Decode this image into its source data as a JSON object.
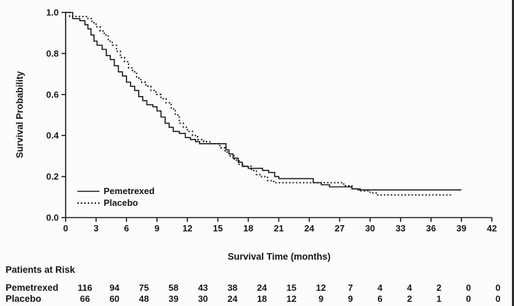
{
  "figure": {
    "background": "#fcfcfb",
    "ink": "#1a1a1a"
  },
  "chart_data": {
    "type": "line",
    "subtype": "kaplan-meier-step",
    "title": "",
    "xlabel": "Survival Time (months)",
    "ylabel": "Survival Probability",
    "xlim": [
      0,
      42
    ],
    "ylim": [
      0,
      1
    ],
    "x_ticks": [
      0,
      3,
      6,
      9,
      12,
      15,
      18,
      21,
      24,
      27,
      30,
      33,
      36,
      39,
      42
    ],
    "y_ticks": [
      "0.0",
      "0.2",
      "0.4",
      "0.6",
      "0.8",
      "1.0"
    ],
    "grid": false,
    "legend_position": "inside-lower-left",
    "series": [
      {
        "name": "Pemetrexed",
        "line_style": "solid",
        "color": "#1a1a1a",
        "points": [
          [
            0,
            1.0
          ],
          [
            0.7,
            0.97
          ],
          [
            1.4,
            0.96
          ],
          [
            1.9,
            0.94
          ],
          [
            2.2,
            0.92
          ],
          [
            2.5,
            0.89
          ],
          [
            2.8,
            0.86
          ],
          [
            3.1,
            0.84
          ],
          [
            3.6,
            0.82
          ],
          [
            4.0,
            0.79
          ],
          [
            4.4,
            0.77
          ],
          [
            4.8,
            0.74
          ],
          [
            5.2,
            0.71
          ],
          [
            5.6,
            0.69
          ],
          [
            6.0,
            0.66
          ],
          [
            6.4,
            0.64
          ],
          [
            6.8,
            0.62
          ],
          [
            7.2,
            0.59
          ],
          [
            7.6,
            0.57
          ],
          [
            8.0,
            0.55
          ],
          [
            8.6,
            0.54
          ],
          [
            9.0,
            0.52
          ],
          [
            9.4,
            0.49
          ],
          [
            9.8,
            0.46
          ],
          [
            10.2,
            0.44
          ],
          [
            10.6,
            0.42
          ],
          [
            11.2,
            0.41
          ],
          [
            11.8,
            0.39
          ],
          [
            12.3,
            0.38
          ],
          [
            12.8,
            0.37
          ],
          [
            13.2,
            0.36
          ],
          [
            15.8,
            0.33
          ],
          [
            16.1,
            0.31
          ],
          [
            16.5,
            0.29
          ],
          [
            17.0,
            0.27
          ],
          [
            17.4,
            0.25
          ],
          [
            18.0,
            0.24
          ],
          [
            19.4,
            0.23
          ],
          [
            20.0,
            0.22
          ],
          [
            20.6,
            0.2
          ],
          [
            21.0,
            0.19
          ],
          [
            24.4,
            0.17
          ],
          [
            25.2,
            0.16
          ],
          [
            26.0,
            0.15
          ],
          [
            28.2,
            0.14
          ],
          [
            28.8,
            0.135
          ],
          [
            39,
            0.135
          ]
        ]
      },
      {
        "name": "Placebo",
        "line_style": "dotted",
        "color": "#1a1a1a",
        "points": [
          [
            0,
            1.0
          ],
          [
            0.4,
            0.98
          ],
          [
            2.2,
            0.97
          ],
          [
            2.6,
            0.95
          ],
          [
            3.0,
            0.93
          ],
          [
            3.4,
            0.91
          ],
          [
            3.8,
            0.89
          ],
          [
            4.2,
            0.86
          ],
          [
            4.6,
            0.84
          ],
          [
            5.0,
            0.81
          ],
          [
            5.4,
            0.78
          ],
          [
            5.8,
            0.76
          ],
          [
            6.2,
            0.73
          ],
          [
            6.6,
            0.71
          ],
          [
            7.0,
            0.68
          ],
          [
            7.4,
            0.66
          ],
          [
            7.9,
            0.64
          ],
          [
            8.4,
            0.62
          ],
          [
            8.9,
            0.6
          ],
          [
            9.4,
            0.58
          ],
          [
            9.9,
            0.56
          ],
          [
            10.4,
            0.53
          ],
          [
            10.8,
            0.5
          ],
          [
            11.2,
            0.46
          ],
          [
            11.6,
            0.44
          ],
          [
            12.0,
            0.42
          ],
          [
            12.5,
            0.4
          ],
          [
            13.0,
            0.38
          ],
          [
            13.6,
            0.37
          ],
          [
            14.2,
            0.36
          ],
          [
            15.2,
            0.34
          ],
          [
            15.7,
            0.32
          ],
          [
            16.1,
            0.3
          ],
          [
            16.6,
            0.28
          ],
          [
            17.1,
            0.26
          ],
          [
            17.6,
            0.25
          ],
          [
            18.3,
            0.23
          ],
          [
            18.8,
            0.21
          ],
          [
            19.3,
            0.2
          ],
          [
            19.9,
            0.18
          ],
          [
            20.5,
            0.17
          ],
          [
            27.4,
            0.155
          ],
          [
            28.2,
            0.14
          ],
          [
            29.0,
            0.13
          ],
          [
            30.0,
            0.12
          ],
          [
            30.6,
            0.11
          ],
          [
            38,
            0.11
          ]
        ]
      }
    ]
  },
  "risk_table": {
    "title": "Patients at Risk",
    "time_points": [
      0,
      3,
      6,
      9,
      12,
      15,
      18,
      21,
      24,
      27,
      30,
      33,
      36,
      39,
      42
    ],
    "rows": [
      {
        "label": "Pemetrexed",
        "counts": [
          "116",
          "94",
          "75",
          "58",
          "43",
          "38",
          "24",
          "15",
          "12",
          "7",
          "4",
          "4",
          "2",
          "0",
          "0"
        ]
      },
      {
        "label": "Placebo",
        "counts": [
          "66",
          "60",
          "48",
          "39",
          "30",
          "24",
          "18",
          "12",
          "9",
          "9",
          "6",
          "2",
          "1",
          "0",
          "0"
        ]
      }
    ]
  }
}
